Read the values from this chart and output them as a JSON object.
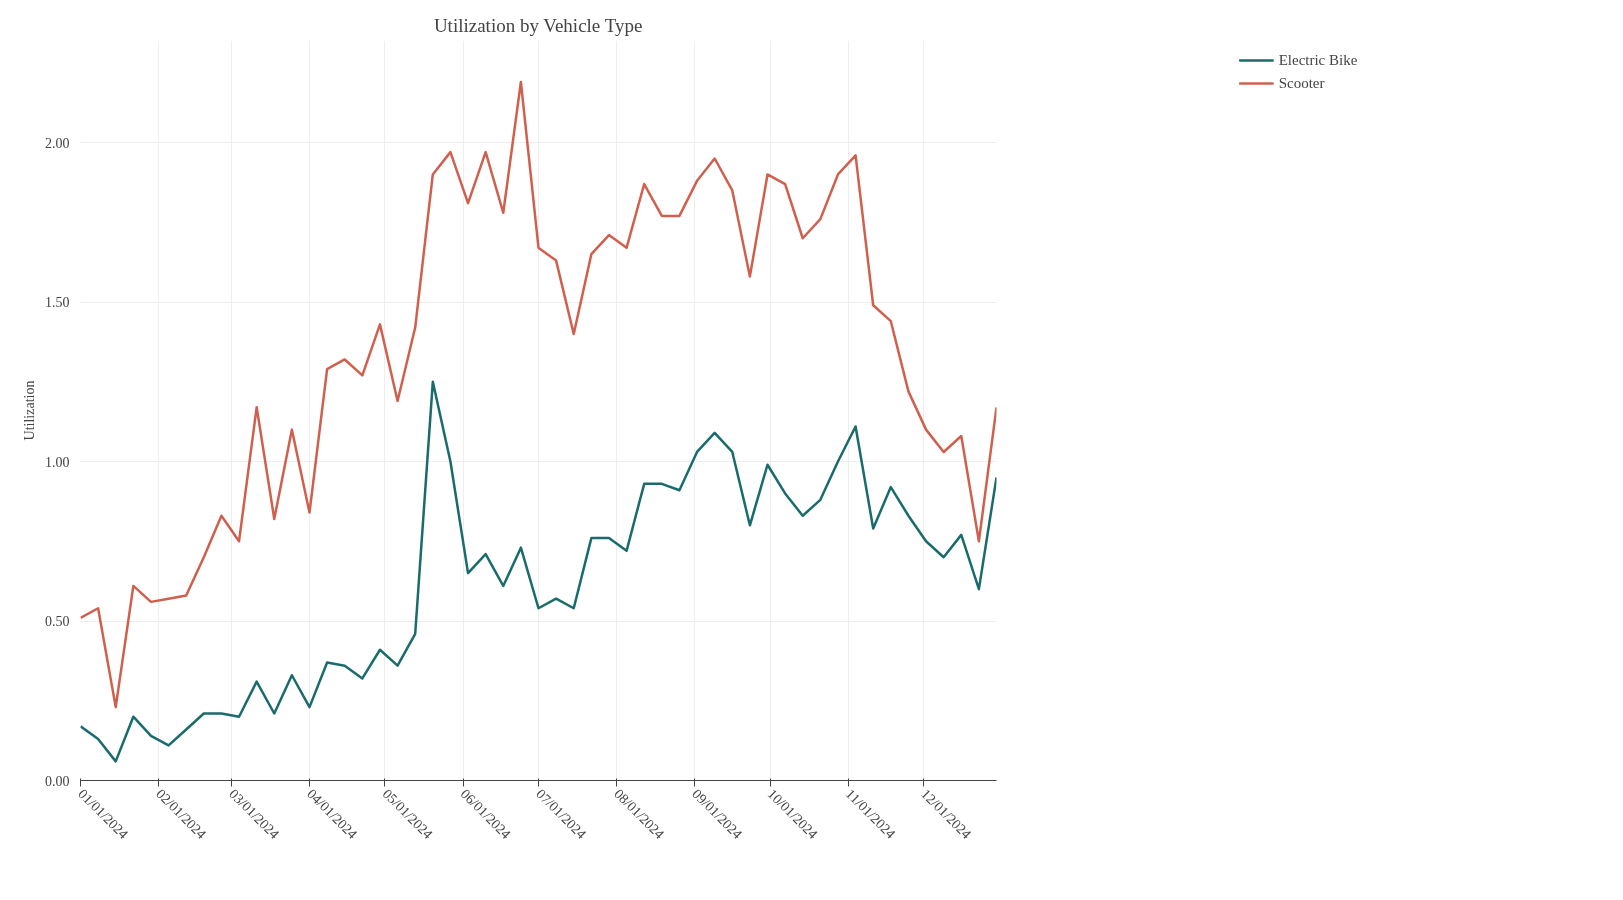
{
  "chart_data": {
    "type": "line",
    "title": "Utilization by Vehicle Type",
    "ylabel": "Utilization",
    "x": [
      "2024-01-01",
      "2024-01-08",
      "2024-01-15",
      "2024-01-22",
      "2024-01-29",
      "2024-02-05",
      "2024-02-12",
      "2024-02-19",
      "2024-02-26",
      "2024-03-04",
      "2024-03-11",
      "2024-03-18",
      "2024-03-25",
      "2024-04-01",
      "2024-04-08",
      "2024-04-15",
      "2024-04-22",
      "2024-04-29",
      "2024-05-06",
      "2024-05-13",
      "2024-05-20",
      "2024-05-27",
      "2024-06-03",
      "2024-06-10",
      "2024-06-17",
      "2024-06-24",
      "2024-07-01",
      "2024-07-08",
      "2024-07-15",
      "2024-07-22",
      "2024-07-29",
      "2024-08-05",
      "2024-08-12",
      "2024-08-19",
      "2024-08-26",
      "2024-09-02",
      "2024-09-09",
      "2024-09-16",
      "2024-09-23",
      "2024-09-30",
      "2024-10-07",
      "2024-10-14",
      "2024-10-21",
      "2024-10-28",
      "2024-11-04",
      "2024-11-11",
      "2024-11-18",
      "2024-11-25",
      "2024-12-02",
      "2024-12-09",
      "2024-12-16",
      "2024-12-23",
      "2024-12-30"
    ],
    "series": [
      {
        "name": "Electric Bike",
        "color": "#1a6b6b",
        "values": [
          0.17,
          0.13,
          0.06,
          0.2,
          0.14,
          0.11,
          0.16,
          0.21,
          0.21,
          0.2,
          0.31,
          0.21,
          0.33,
          0.23,
          0.37,
          0.36,
          0.32,
          0.41,
          0.36,
          0.46,
          1.25,
          1.0,
          0.65,
          0.71,
          0.61,
          0.73,
          0.54,
          0.57,
          0.54,
          0.76,
          0.76,
          0.72,
          0.93,
          0.93,
          0.91,
          1.03,
          1.09,
          1.03,
          0.8,
          0.99,
          0.9,
          0.83,
          0.88,
          1.0,
          1.11,
          0.79,
          0.92,
          0.83,
          0.75,
          0.7,
          0.77,
          0.6,
          0.95
        ]
      },
      {
        "name": "Scooter",
        "color": "#d0604e",
        "values": [
          0.51,
          0.54,
          0.23,
          0.61,
          0.56,
          0.57,
          0.58,
          0.7,
          0.83,
          0.75,
          1.17,
          0.82,
          1.1,
          0.84,
          1.29,
          1.32,
          1.27,
          1.43,
          1.19,
          1.42,
          1.9,
          1.97,
          1.81,
          1.97,
          1.78,
          2.19,
          1.67,
          1.63,
          1.4,
          1.65,
          1.71,
          1.67,
          1.87,
          1.77,
          1.77,
          1.88,
          1.95,
          1.85,
          1.58,
          1.9,
          1.87,
          1.7,
          1.76,
          1.9,
          1.96,
          1.49,
          1.44,
          1.22,
          1.1,
          1.03,
          1.08,
          0.75,
          1.17
        ]
      }
    ],
    "xlim": [
      "2024-01-01",
      "2024-12-30"
    ],
    "xticks": [
      {
        "value": "2024-01-01",
        "label": "01/01/2024"
      },
      {
        "value": "2024-02-01",
        "label": "02/01/2024"
      },
      {
        "value": "2024-03-01",
        "label": "03/01/2024"
      },
      {
        "value": "2024-04-01",
        "label": "04/01/2024"
      },
      {
        "value": "2024-05-01",
        "label": "05/01/2024"
      },
      {
        "value": "2024-06-01",
        "label": "06/01/2024"
      },
      {
        "value": "2024-07-01",
        "label": "07/01/2024"
      },
      {
        "value": "2024-08-01",
        "label": "08/01/2024"
      },
      {
        "value": "2024-09-01",
        "label": "09/01/2024"
      },
      {
        "value": "2024-10-01",
        "label": "10/01/2024"
      },
      {
        "value": "2024-11-01",
        "label": "11/01/2024"
      },
      {
        "value": "2024-12-01",
        "label": "12/01/2024"
      }
    ],
    "ylim": [
      0,
      2.32
    ],
    "yticks": [
      {
        "value": 0,
        "label": "0.00"
      },
      {
        "value": 0.5,
        "label": "0.50"
      },
      {
        "value": 1,
        "label": "1.00"
      },
      {
        "value": 1.5,
        "label": "1.50"
      },
      {
        "value": 2,
        "label": "2.00"
      }
    ],
    "grid": true,
    "legend": "top right",
    "marker": "none",
    "line_style": "solid"
  }
}
